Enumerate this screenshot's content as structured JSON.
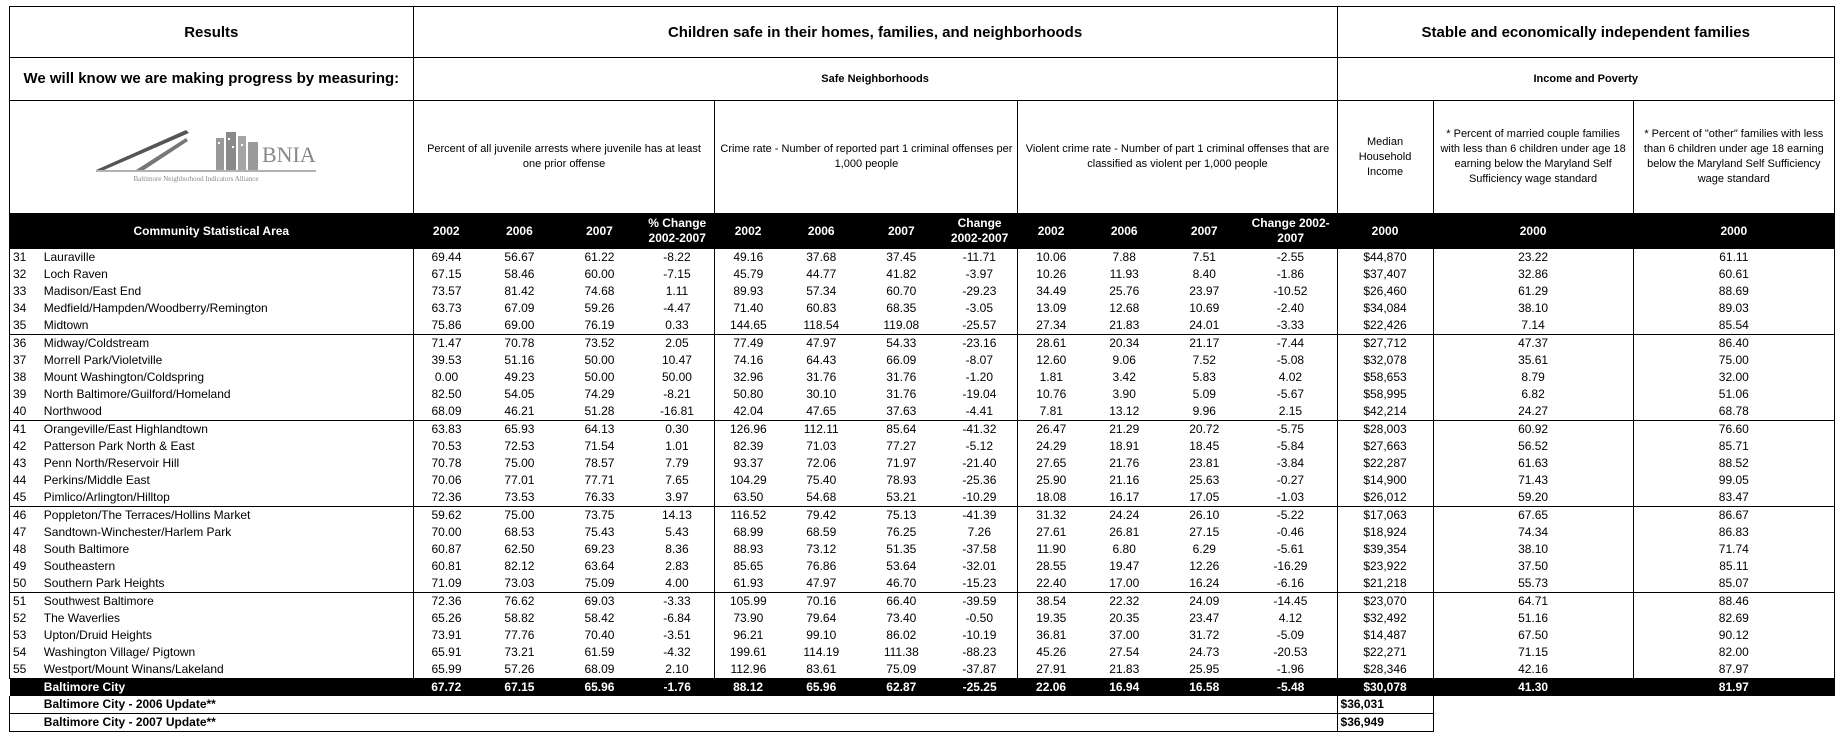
{
  "header": {
    "results": "Results",
    "goal_safe": "Children safe in their homes, families, and neighborhoods",
    "goal_stable": "Stable and economically independent families",
    "measuring": "We will know we are making progress by measuring:",
    "safe_neighborhoods": "Safe Neighborhoods",
    "income_poverty": "Income and Poverty",
    "logo_text": "BNIA",
    "logo_subtext": "Baltimore Neighborhood Indicators Alliance",
    "ind_juvenile": "Percent of all juvenile arrests where juvenile has at least one prior offense",
    "ind_crime": "Crime rate - Number of reported part 1 criminal offenses per 1,000 people",
    "ind_violent": "Violent crime rate - Number of part 1 criminal offenses that are classified as violent per 1,000 people",
    "ind_median": "Median Household Income",
    "ind_married": "* Percent of married couple families with less than 6 children under age 18 earning below the Maryland Self Sufficiency wage standard",
    "ind_other": "* Percent of \"other\" families with less than 6 children under age 18 earning below the Maryland Self Sufficiency wage standard"
  },
  "columns": {
    "csa": "Community Statistical Area",
    "y2002": "2002",
    "y2006": "2006",
    "y2007": "2007",
    "pct_change": "% Change 2002-2007",
    "change": "Change 2002-2007",
    "y2000": "2000"
  },
  "rows": [
    [
      "31",
      "Lauraville",
      "69.44",
      "56.67",
      "61.22",
      "-8.22",
      "49.16",
      "37.68",
      "37.45",
      "-11.71",
      "10.06",
      "7.88",
      "7.51",
      "-2.55",
      "$44,870",
      "23.22",
      "61.11"
    ],
    [
      "32",
      "Loch Raven",
      "67.15",
      "58.46",
      "60.00",
      "-7.15",
      "45.79",
      "44.77",
      "41.82",
      "-3.97",
      "10.26",
      "11.93",
      "8.40",
      "-1.86",
      "$37,407",
      "32.86",
      "60.61"
    ],
    [
      "33",
      "Madison/East End",
      "73.57",
      "81.42",
      "74.68",
      "1.11",
      "89.93",
      "57.34",
      "60.70",
      "-29.23",
      "34.49",
      "25.76",
      "23.97",
      "-10.52",
      "$26,460",
      "61.29",
      "88.69"
    ],
    [
      "34",
      "Medfield/Hampden/Woodberry/Remington",
      "63.73",
      "67.09",
      "59.26",
      "-4.47",
      "71.40",
      "60.83",
      "68.35",
      "-3.05",
      "13.09",
      "12.68",
      "10.69",
      "-2.40",
      "$34,084",
      "38.10",
      "89.03"
    ],
    [
      "35",
      "Midtown",
      "75.86",
      "69.00",
      "76.19",
      "0.33",
      "144.65",
      "118.54",
      "119.08",
      "-25.57",
      "27.34",
      "21.83",
      "24.01",
      "-3.33",
      "$22,426",
      "7.14",
      "85.54"
    ],
    [
      "36",
      "Midway/Coldstream",
      "71.47",
      "70.78",
      "73.52",
      "2.05",
      "77.49",
      "47.97",
      "54.33",
      "-23.16",
      "28.61",
      "20.34",
      "21.17",
      "-7.44",
      "$27,712",
      "47.37",
      "86.40"
    ],
    [
      "37",
      "Morrell Park/Violetville",
      "39.53",
      "51.16",
      "50.00",
      "10.47",
      "74.16",
      "64.43",
      "66.09",
      "-8.07",
      "12.60",
      "9.06",
      "7.52",
      "-5.08",
      "$32,078",
      "35.61",
      "75.00"
    ],
    [
      "38",
      "Mount Washington/Coldspring",
      "0.00",
      "49.23",
      "50.00",
      "50.00",
      "32.96",
      "31.76",
      "31.76",
      "-1.20",
      "1.81",
      "3.42",
      "5.83",
      "4.02",
      "$58,653",
      "8.79",
      "32.00"
    ],
    [
      "39",
      "North Baltimore/Guilford/Homeland",
      "82.50",
      "54.05",
      "74.29",
      "-8.21",
      "50.80",
      "30.10",
      "31.76",
      "-19.04",
      "10.76",
      "3.90",
      "5.09",
      "-5.67",
      "$58,995",
      "6.82",
      "51.06"
    ],
    [
      "40",
      "Northwood",
      "68.09",
      "46.21",
      "51.28",
      "-16.81",
      "42.04",
      "47.65",
      "37.63",
      "-4.41",
      "7.81",
      "13.12",
      "9.96",
      "2.15",
      "$42,214",
      "24.27",
      "68.78"
    ],
    [
      "41",
      "Orangeville/East Highlandtown",
      "63.83",
      "65.93",
      "64.13",
      "0.30",
      "126.96",
      "112.11",
      "85.64",
      "-41.32",
      "26.47",
      "21.29",
      "20.72",
      "-5.75",
      "$28,003",
      "60.92",
      "76.60"
    ],
    [
      "42",
      "Patterson Park North & East",
      "70.53",
      "72.53",
      "71.54",
      "1.01",
      "82.39",
      "71.03",
      "77.27",
      "-5.12",
      "24.29",
      "18.91",
      "18.45",
      "-5.84",
      "$27,663",
      "56.52",
      "85.71"
    ],
    [
      "43",
      "Penn North/Reservoir Hill",
      "70.78",
      "75.00",
      "78.57",
      "7.79",
      "93.37",
      "72.06",
      "71.97",
      "-21.40",
      "27.65",
      "21.76",
      "23.81",
      "-3.84",
      "$22,287",
      "61.63",
      "88.52"
    ],
    [
      "44",
      "Perkins/Middle East",
      "70.06",
      "77.01",
      "77.71",
      "7.65",
      "104.29",
      "75.40",
      "78.93",
      "-25.36",
      "25.90",
      "21.16",
      "25.63",
      "-0.27",
      "$14,900",
      "71.43",
      "99.05"
    ],
    [
      "45",
      "Pimlico/Arlington/Hilltop",
      "72.36",
      "73.53",
      "76.33",
      "3.97",
      "63.50",
      "54.68",
      "53.21",
      "-10.29",
      "18.08",
      "16.17",
      "17.05",
      "-1.03",
      "$26,012",
      "59.20",
      "83.47"
    ],
    [
      "46",
      "Poppleton/The Terraces/Hollins Market",
      "59.62",
      "75.00",
      "73.75",
      "14.13",
      "116.52",
      "79.42",
      "75.13",
      "-41.39",
      "31.32",
      "24.24",
      "26.10",
      "-5.22",
      "$17,063",
      "67.65",
      "86.67"
    ],
    [
      "47",
      "Sandtown-Winchester/Harlem Park",
      "70.00",
      "68.53",
      "75.43",
      "5.43",
      "68.99",
      "68.59",
      "76.25",
      "7.26",
      "27.61",
      "26.81",
      "27.15",
      "-0.46",
      "$18,924",
      "74.34",
      "86.83"
    ],
    [
      "48",
      "South Baltimore",
      "60.87",
      "62.50",
      "69.23",
      "8.36",
      "88.93",
      "73.12",
      "51.35",
      "-37.58",
      "11.90",
      "6.80",
      "6.29",
      "-5.61",
      "$39,354",
      "38.10",
      "71.74"
    ],
    [
      "49",
      "Southeastern",
      "60.81",
      "82.12",
      "63.64",
      "2.83",
      "85.65",
      "76.86",
      "53.64",
      "-32.01",
      "28.55",
      "19.47",
      "12.26",
      "-16.29",
      "$23,922",
      "37.50",
      "85.11"
    ],
    [
      "50",
      "Southern Park Heights",
      "71.09",
      "73.03",
      "75.09",
      "4.00",
      "61.93",
      "47.97",
      "46.70",
      "-15.23",
      "22.40",
      "17.00",
      "16.24",
      "-6.16",
      "$21,218",
      "55.73",
      "85.07"
    ],
    [
      "51",
      "Southwest Baltimore",
      "72.36",
      "76.62",
      "69.03",
      "-3.33",
      "105.99",
      "70.16",
      "66.40",
      "-39.59",
      "38.54",
      "22.32",
      "24.09",
      "-14.45",
      "$23,070",
      "64.71",
      "88.46"
    ],
    [
      "52",
      "The Waverlies",
      "65.26",
      "58.82",
      "58.42",
      "-6.84",
      "73.90",
      "79.64",
      "73.40",
      "-0.50",
      "19.35",
      "20.35",
      "23.47",
      "4.12",
      "$32,492",
      "51.16",
      "82.69"
    ],
    [
      "53",
      "Upton/Druid Heights",
      "73.91",
      "77.76",
      "70.40",
      "-3.51",
      "96.21",
      "99.10",
      "86.02",
      "-10.19",
      "36.81",
      "37.00",
      "31.72",
      "-5.09",
      "$14,487",
      "67.50",
      "90.12"
    ],
    [
      "54",
      "Washington Village/ Pigtown",
      "65.91",
      "73.21",
      "61.59",
      "-4.32",
      "199.61",
      "114.19",
      "111.38",
      "-88.23",
      "45.26",
      "27.54",
      "24.73",
      "-20.53",
      "$22,271",
      "71.15",
      "82.00"
    ],
    [
      "55",
      "Westport/Mount Winans/Lakeland",
      "65.99",
      "57.26",
      "68.09",
      "2.10",
      "112.96",
      "83.61",
      "75.09",
      "-37.87",
      "27.91",
      "21.83",
      "25.95",
      "-1.96",
      "$28,346",
      "42.16",
      "87.97"
    ]
  ],
  "total": [
    "Baltimore City",
    "67.72",
    "67.15",
    "65.96",
    "-1.76",
    "88.12",
    "65.96",
    "62.87",
    "-25.25",
    "22.06",
    "16.94",
    "16.58",
    "-5.48",
    "$30,078",
    "41.30",
    "81.97"
  ],
  "updates": [
    {
      "label": "Baltimore City - 2006 Update**",
      "value": "$36,031"
    },
    {
      "label": "Baltimore City - 2007 Update**",
      "value": "$36,949"
    }
  ]
}
